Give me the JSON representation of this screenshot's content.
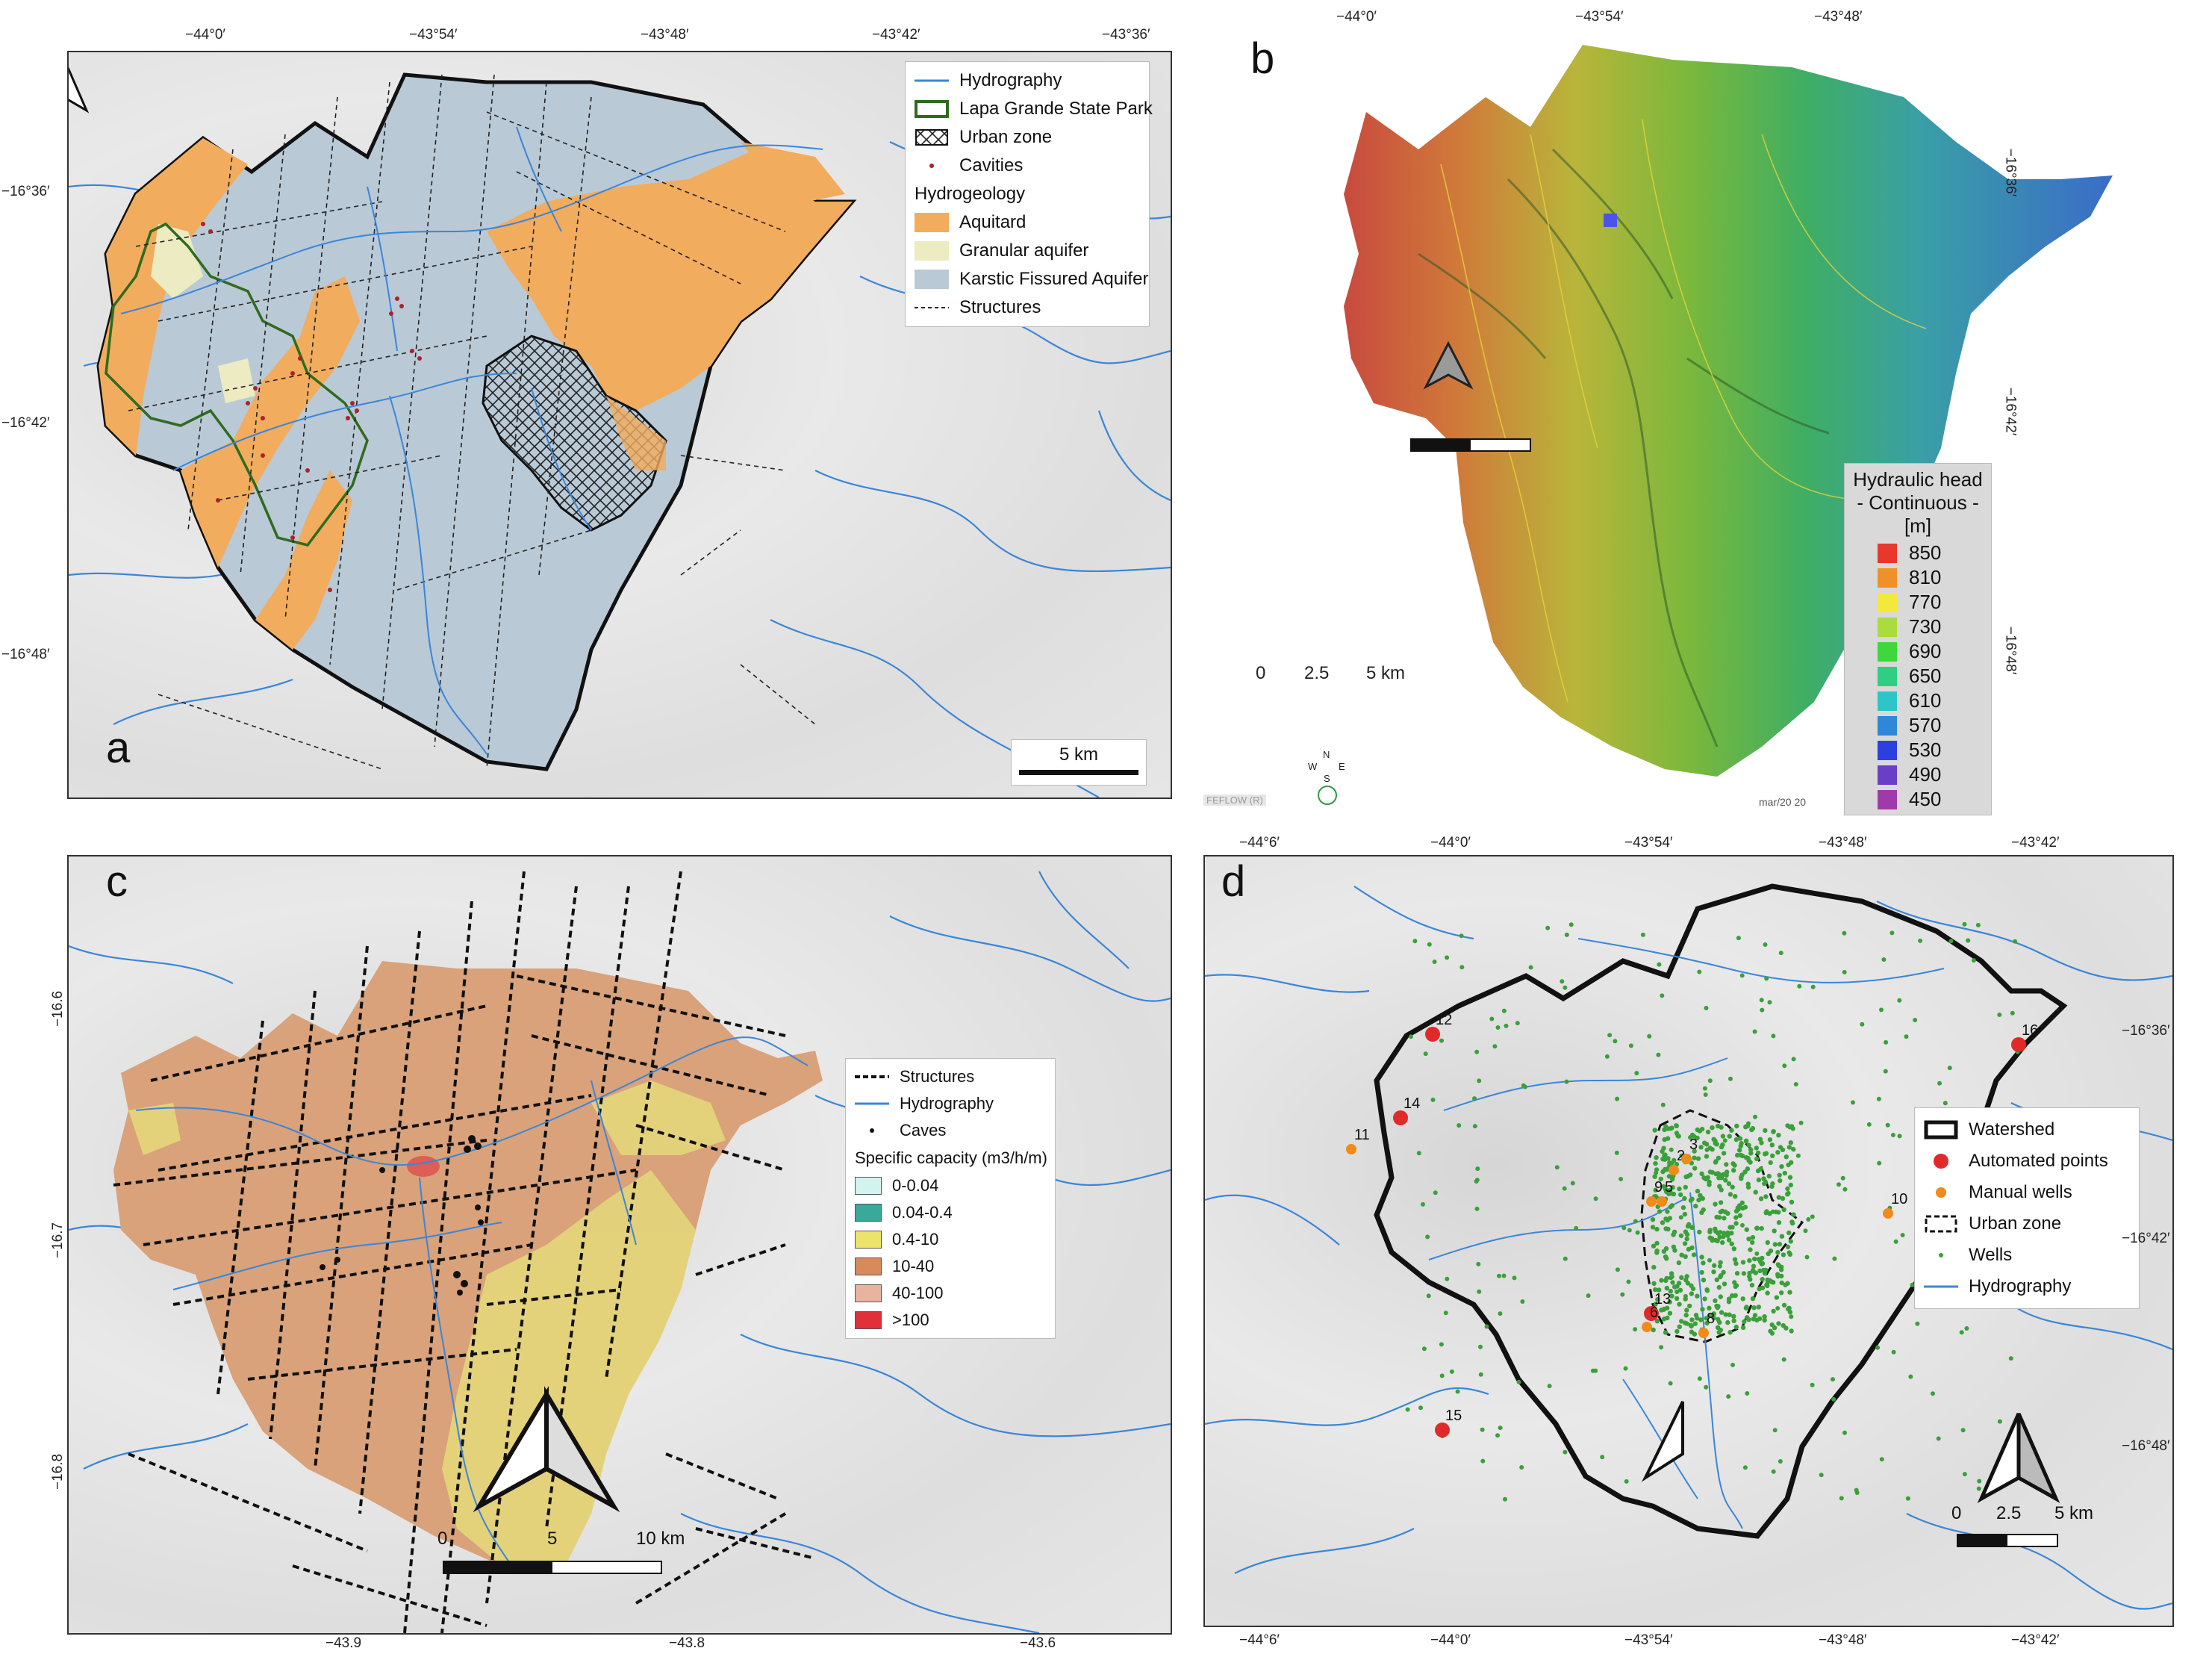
{
  "panel_a": {
    "label": "a",
    "top_ticks": [
      "−44°0′",
      "−43°54′",
      "−43°48′",
      "−43°42′",
      "−43°36′"
    ],
    "left_ticks": [
      "−16°36′",
      "−16°42′",
      "−16°48′"
    ],
    "legend": {
      "hydrography": "Hydrography",
      "park": "Lapa Grande State Park",
      "urban": "Urban zone",
      "cavities": "Cavities",
      "hydrogeology_title": "Hydrogeology",
      "aquitard": "Aquitard",
      "granular": "Granular aquifer",
      "karstic": "Karstic Fissured Aquifer",
      "structures": "Structures"
    },
    "scale": "5 km",
    "colors": {
      "aquitard": "#f2ac5d",
      "granular": "#ecebc2",
      "karstic": "#b9c9d6",
      "hydro": "#3a86d8",
      "park": "#2f6b1f"
    }
  },
  "panel_b": {
    "label": "b",
    "top_ticks": [
      "−44°0′",
      "−43°54′",
      "−43°48′"
    ],
    "right_ticks": [
      "−16°36′",
      "−16°42′",
      "−16°48′"
    ],
    "legend_title": [
      "Hydraulic head",
      "- Continuous -",
      "[m]"
    ],
    "legend_values": [
      {
        "label": "850",
        "color": "#e8372d"
      },
      {
        "label": "810",
        "color": "#f0902a"
      },
      {
        "label": "770",
        "color": "#f2ea3a"
      },
      {
        "label": "730",
        "color": "#a9dc3c"
      },
      {
        "label": "690",
        "color": "#3fd83c"
      },
      {
        "label": "650",
        "color": "#2ecf82"
      },
      {
        "label": "610",
        "color": "#2cc6c8"
      },
      {
        "label": "570",
        "color": "#2e87d8"
      },
      {
        "label": "530",
        "color": "#2e3fe0"
      },
      {
        "label": "490",
        "color": "#6a3fc8"
      },
      {
        "label": "450",
        "color": "#a03aaa"
      }
    ],
    "scale_labels": [
      "0",
      "2.5",
      "5 km"
    ],
    "compass": [
      "N",
      "W",
      "E",
      "S"
    ],
    "footer_left": "FEFLOW (R)",
    "footer_right": "mar/20 20"
  },
  "panel_c": {
    "label": "c",
    "left_ticks": [
      "−16.6",
      "−16.7",
      "−16.8"
    ],
    "bottom_ticks": [
      "−43.9",
      "−43.8",
      "−43.6"
    ],
    "legend": {
      "structures": "Structures",
      "hydrography": "Hydrography",
      "caves": "Caves",
      "title": "Specific capacity (m3/h/m)",
      "classes": [
        {
          "label": "0-0.04",
          "color": "#d3f3ef"
        },
        {
          "label": "0.04-0.4",
          "color": "#3aa89a"
        },
        {
          "label": "0.4-10",
          "color": "#ece46a"
        },
        {
          "label": "10-40",
          "color": "#d98a5c"
        },
        {
          "label": "40-100",
          "color": "#e8b4a0"
        },
        {
          "label": ">100",
          "color": "#e0303a"
        }
      ]
    },
    "scale_labels": [
      "0",
      "5",
      "10 km"
    ]
  },
  "panel_d": {
    "label": "d",
    "top_ticks": [
      "−44°6′",
      "−44°0′",
      "−43°54′",
      "−43°48′",
      "−43°42′"
    ],
    "bottom_ticks": [
      "−44°6′",
      "−44°0′",
      "−43°54′",
      "−43°48′",
      "−43°42′"
    ],
    "right_ticks": [
      "−16°36′",
      "−16°42′",
      "−16°48′"
    ],
    "legend": {
      "watershed": "Watershed",
      "automated": "Automated points",
      "manual": "Manual wells",
      "urban": "Urban zone",
      "wells": "Wells",
      "hydrography": "Hydrography"
    },
    "points": [
      {
        "id": "12",
        "kind": "auto"
      },
      {
        "id": "14",
        "kind": "auto"
      },
      {
        "id": "11",
        "kind": "manual"
      },
      {
        "id": "16",
        "kind": "auto"
      },
      {
        "id": "2",
        "kind": "manual"
      },
      {
        "id": "3",
        "kind": "manual"
      },
      {
        "id": "9",
        "kind": "manual"
      },
      {
        "id": "5",
        "kind": "manual"
      },
      {
        "id": "10",
        "kind": "manual"
      },
      {
        "id": "13",
        "kind": "auto"
      },
      {
        "id": "6",
        "kind": "manual"
      },
      {
        "id": "8",
        "kind": "manual"
      },
      {
        "id": "15",
        "kind": "auto"
      }
    ],
    "scale_labels": [
      "0",
      "2.5",
      "5 km"
    ]
  }
}
